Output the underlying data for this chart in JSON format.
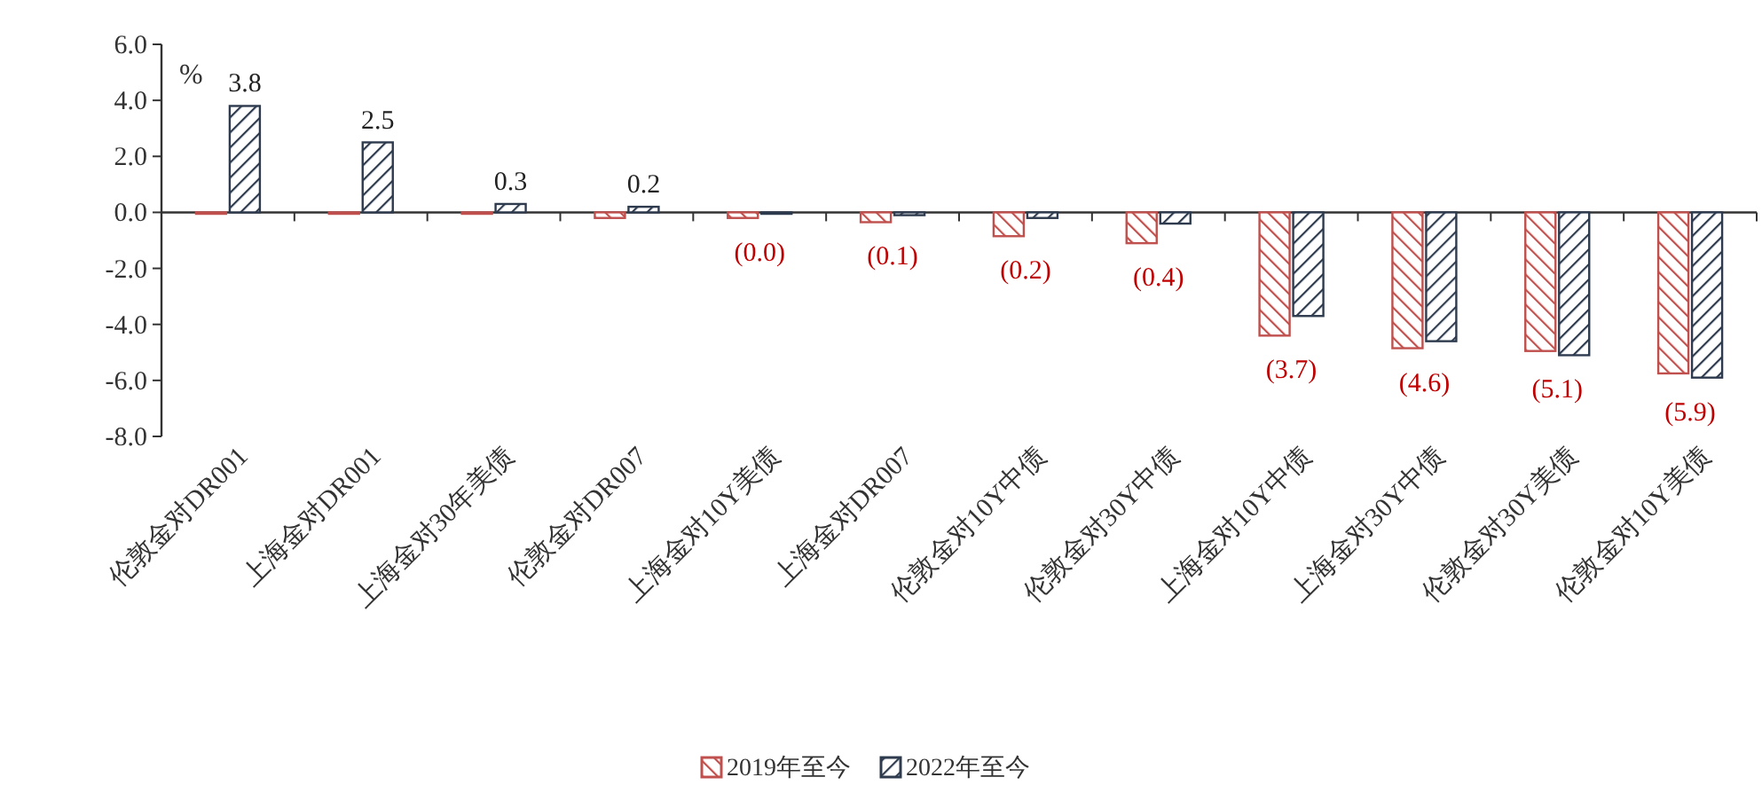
{
  "chart_data": {
    "type": "bar",
    "categories": [
      "伦敦金对DR001",
      "上海金对DR001",
      "上海金对30年美债",
      "伦敦金对DR007",
      "上海金对10Y美债",
      "上海金对DR007",
      "伦敦金对10Y中债",
      "伦敦金对30Y中债",
      "上海金对10Y中债",
      "上海金对30Y中债",
      "伦敦金对30Y美债",
      "伦敦金对10Y美债"
    ],
    "series": [
      {
        "name": "2019年至今",
        "color": "#c0504d",
        "values": [
          -0.05,
          -0.05,
          -0.05,
          -0.2,
          -0.2,
          -0.35,
          -0.85,
          -1.1,
          -4.4,
          -4.85,
          -4.95,
          -5.75
        ]
      },
      {
        "name": "2022年至今",
        "color": "#2e3b4e",
        "values": [
          3.8,
          2.5,
          0.3,
          0.2,
          -0.0,
          -0.1,
          -0.2,
          -0.4,
          -3.7,
          -4.6,
          -5.1,
          -5.9
        ],
        "value_labels": [
          "3.8",
          "2.5",
          "0.3",
          "0.2",
          "(0.0)",
          "(0.1)",
          "(0.2)",
          "(0.4)",
          "(3.7)",
          "(4.6)",
          "(5.1)",
          "(5.9)"
        ]
      }
    ],
    "ylim": [
      -8,
      6
    ],
    "yticks": [
      {
        "value": -8,
        "label": "-8.0"
      },
      {
        "value": -6,
        "label": "-6.0"
      },
      {
        "value": -4,
        "label": "-4.0"
      },
      {
        "value": -2,
        "label": "-2.0"
      },
      {
        "value": 0,
        "label": "0.0"
      },
      {
        "value": 2,
        "label": "2.0"
      },
      {
        "value": 4,
        "label": "4.0"
      },
      {
        "value": 6,
        "label": "6.0"
      }
    ],
    "annotations": [
      "%"
    ],
    "legend": "bottom"
  }
}
